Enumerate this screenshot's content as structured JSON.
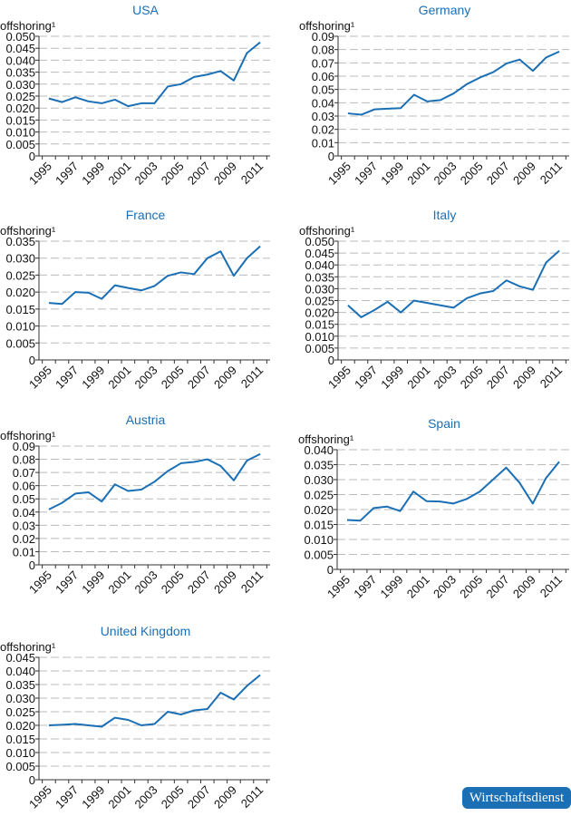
{
  "chart_data": [
    {
      "type": "line",
      "title": "USA",
      "ylabel": "offshoring¹",
      "ylim": [
        0,
        0.05
      ],
      "yticks": [
        "0",
        "0.005",
        "0.010",
        "0.015",
        "0.020",
        "0.025",
        "0.030",
        "0.035",
        "0.040",
        "0.045",
        "0.050"
      ],
      "ytick_values": [
        0,
        0.005,
        0.01,
        0.015,
        0.02,
        0.025,
        0.03,
        0.035,
        0.04,
        0.045,
        0.05
      ],
      "x": [
        1995,
        1996,
        1997,
        1998,
        1999,
        2000,
        2001,
        2002,
        2003,
        2004,
        2005,
        2006,
        2007,
        2008,
        2009,
        2010,
        2011
      ],
      "values": [
        0.024,
        0.0225,
        0.0245,
        0.0228,
        0.022,
        0.0235,
        0.0208,
        0.022,
        0.022,
        0.029,
        0.03,
        0.033,
        0.034,
        0.0355,
        0.0315,
        0.043,
        0.0475
      ]
    },
    {
      "type": "line",
      "title": "Germany",
      "ylabel": "offshoring¹",
      "ylim": [
        0,
        0.09
      ],
      "yticks": [
        "0",
        "0.01",
        "0.02",
        "0.03",
        "0.04",
        "0.05",
        "0.06",
        "0.07",
        "0.08",
        "0.09"
      ],
      "ytick_values": [
        0,
        0.01,
        0.02,
        0.03,
        0.04,
        0.05,
        0.06,
        0.07,
        0.08,
        0.09
      ],
      "x": [
        1995,
        1996,
        1997,
        1998,
        1999,
        2000,
        2001,
        2002,
        2003,
        2004,
        2005,
        2006,
        2007,
        2008,
        2009,
        2010,
        2011
      ],
      "values": [
        0.032,
        0.031,
        0.035,
        0.0355,
        0.036,
        0.046,
        0.041,
        0.042,
        0.047,
        0.054,
        0.059,
        0.063,
        0.0695,
        0.0725,
        0.064,
        0.074,
        0.0785
      ]
    },
    {
      "type": "line",
      "title": "France",
      "ylabel": "offshoring¹",
      "ylim": [
        0,
        0.035
      ],
      "yticks": [
        "0",
        "0.005",
        "0.010",
        "0.015",
        "0.020",
        "0.025",
        "0.030",
        "0.035"
      ],
      "ytick_values": [
        0,
        0.005,
        0.01,
        0.015,
        0.02,
        0.025,
        0.03,
        0.035
      ],
      "x": [
        1995,
        1996,
        1997,
        1998,
        1999,
        2000,
        2001,
        2002,
        2003,
        2004,
        2005,
        2006,
        2007,
        2008,
        2009,
        2010,
        2011
      ],
      "values": [
        0.0168,
        0.0165,
        0.02,
        0.0198,
        0.018,
        0.022,
        0.0212,
        0.0205,
        0.0218,
        0.0248,
        0.0258,
        0.0253,
        0.03,
        0.032,
        0.0248,
        0.03,
        0.0335
      ]
    },
    {
      "type": "line",
      "title": "Italy",
      "ylabel": "offshoring¹",
      "ylim": [
        0,
        0.05
      ],
      "yticks": [
        "0",
        "0.005",
        "0.010",
        "0.015",
        "0.020",
        "0.025",
        "0.030",
        "0.035",
        "0.040",
        "0.045",
        "0.050"
      ],
      "ytick_values": [
        0,
        0.005,
        0.01,
        0.015,
        0.02,
        0.025,
        0.03,
        0.035,
        0.04,
        0.045,
        0.05
      ],
      "x": [
        1995,
        1996,
        1997,
        1998,
        1999,
        2000,
        2001,
        2002,
        2003,
        2004,
        2005,
        2006,
        2007,
        2008,
        2009,
        2010,
        2011
      ],
      "values": [
        0.023,
        0.018,
        0.021,
        0.0245,
        0.02,
        0.025,
        0.024,
        0.023,
        0.022,
        0.026,
        0.028,
        0.029,
        0.0335,
        0.031,
        0.0295,
        0.041,
        0.046
      ]
    },
    {
      "type": "line",
      "title": "Austria",
      "ylabel": "offshoring¹",
      "ylim": [
        0,
        0.09
      ],
      "yticks": [
        "0",
        "0.01",
        "0.02",
        "0.03",
        "0.04",
        "0.05",
        "0.06",
        "0.07",
        "0.08",
        "0.09"
      ],
      "ytick_values": [
        0,
        0.01,
        0.02,
        0.03,
        0.04,
        0.05,
        0.06,
        0.07,
        0.08,
        0.09
      ],
      "x": [
        1995,
        1996,
        1997,
        1998,
        1999,
        2000,
        2001,
        2002,
        2003,
        2004,
        2005,
        2006,
        2007,
        2008,
        2009,
        2010,
        2011
      ],
      "values": [
        0.042,
        0.047,
        0.054,
        0.055,
        0.048,
        0.061,
        0.056,
        0.057,
        0.063,
        0.071,
        0.077,
        0.078,
        0.08,
        0.075,
        0.064,
        0.079,
        0.084
      ]
    },
    {
      "type": "line",
      "title": "Spain",
      "ylabel": "offshoring¹",
      "ylim": [
        0,
        0.04
      ],
      "yticks": [
        "0",
        "0.005",
        "0.010",
        "0.015",
        "0.020",
        "0.025",
        "0.030",
        "0.035",
        "0.040"
      ],
      "ytick_values": [
        0,
        0.005,
        0.01,
        0.015,
        0.02,
        0.025,
        0.03,
        0.035,
        0.04
      ],
      "x": [
        1995,
        1996,
        1997,
        1998,
        1999,
        2000,
        2001,
        2002,
        2003,
        2004,
        2005,
        2006,
        2007,
        2008,
        2009,
        2010,
        2011
      ],
      "values": [
        0.0165,
        0.0163,
        0.0205,
        0.021,
        0.0195,
        0.026,
        0.0228,
        0.0227,
        0.022,
        0.0235,
        0.026,
        0.03,
        0.034,
        0.029,
        0.022,
        0.0305,
        0.036
      ]
    },
    {
      "type": "line",
      "title": "United Kingdom",
      "ylabel": "offshoring¹",
      "ylim": [
        0,
        0.045
      ],
      "yticks": [
        "0",
        "0.005",
        "0.010",
        "0.015",
        "0.020",
        "0.025",
        "0.030",
        "0.035",
        "0.040",
        "0.045"
      ],
      "ytick_values": [
        0,
        0.005,
        0.01,
        0.015,
        0.02,
        0.025,
        0.03,
        0.035,
        0.04,
        0.045
      ],
      "x": [
        1995,
        1996,
        1997,
        1998,
        1999,
        2000,
        2001,
        2002,
        2003,
        2004,
        2005,
        2006,
        2007,
        2008,
        2009,
        2010,
        2011
      ],
      "values": [
        0.02,
        0.0202,
        0.0205,
        0.02,
        0.0195,
        0.0228,
        0.022,
        0.02,
        0.0205,
        0.025,
        0.024,
        0.0255,
        0.026,
        0.032,
        0.0295,
        0.0345,
        0.0385
      ]
    }
  ],
  "xtick_labels": [
    "1995",
    "1997",
    "1999",
    "2001",
    "2003",
    "2005",
    "2007",
    "2009",
    "2011"
  ],
  "colors": {
    "line": "#1a6fb5",
    "title": "#1a6fb5",
    "grid": "#bbbbbb",
    "axis": "#333333"
  },
  "logo": {
    "text": "Wirtschaftsdienst"
  }
}
